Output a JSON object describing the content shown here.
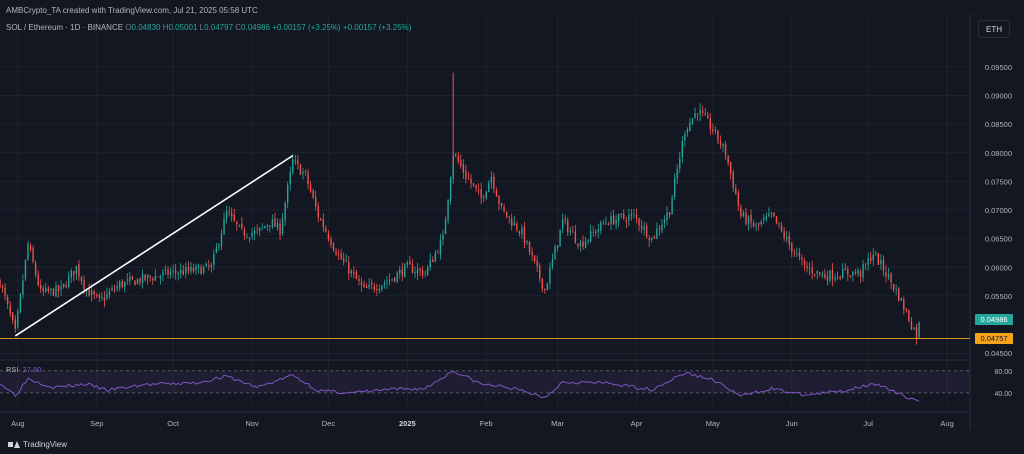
{
  "header": {
    "attribution": "AMBCrypto_TA created with TradingView.com, Jul 21, 2025 05:58 UTC",
    "symbol": "SOL / Ethereum · 1D · BINANCE",
    "o_label": "O",
    "o_value": "0.04830",
    "h_label": "H",
    "h_value": "0.05001",
    "l_label": "L",
    "l_value": "0.04797",
    "c_label": "C",
    "c_value": "0.04986",
    "change": "+0.00157 (+3.25%)"
  },
  "currency_button": "ETH",
  "last_price_tag": {
    "value": "0.04986",
    "color": "#26a69a"
  },
  "line_price_tag": {
    "value": "0.04757",
    "color": "#f7a21b"
  },
  "rsi": {
    "label": "RSI",
    "value": "27.80",
    "levels": [
      "80.00",
      "40.00"
    ],
    "color": "#7e57c2"
  },
  "footer": {
    "brand": "TradingView"
  },
  "colors": {
    "up": "#26a69a",
    "down": "#ef5350",
    "background": "#131722",
    "grid": "#1e222d",
    "trendline": "#ffffff",
    "support": "#f7a21b"
  },
  "chart_data": {
    "type": "candlestick",
    "x_ticks": [
      "Aug",
      "Sep",
      "Oct",
      "Nov",
      "Dec",
      "2025",
      "Feb",
      "Mar",
      "Apr",
      "May",
      "Jun",
      "Jul",
      "Aug"
    ],
    "y_ticks": [
      "0.09500",
      "0.09000",
      "0.08500",
      "0.08000",
      "0.07500",
      "0.07000",
      "0.06500",
      "0.06000",
      "0.05500",
      "0.04500"
    ],
    "y_range": [
      0.0445,
      0.099
    ],
    "x_range": [
      "2024-07-25",
      "2025-08-10"
    ],
    "support_level": 0.04757,
    "trendline": {
      "from": [
        "2024-07-31",
        0.048
      ],
      "to": [
        "2024-11-17",
        0.0795
      ]
    },
    "price_path": [
      [
        "2024-07-25",
        0.0575
      ],
      [
        "2024-07-31",
        0.0485
      ],
      [
        "2024-08-05",
        0.064
      ],
      [
        "2024-08-10",
        0.0555
      ],
      [
        "2024-08-18",
        0.056
      ],
      [
        "2024-08-24",
        0.06
      ],
      [
        "2024-08-28",
        0.056
      ],
      [
        "2024-09-02",
        0.054
      ],
      [
        "2024-09-10",
        0.057
      ],
      [
        "2024-09-20",
        0.058
      ],
      [
        "2024-09-30",
        0.059
      ],
      [
        "2024-10-10",
        0.0595
      ],
      [
        "2024-10-16",
        0.06
      ],
      [
        "2024-10-22",
        0.0695
      ],
      [
        "2024-10-28",
        0.066
      ],
      [
        "2024-11-03",
        0.066
      ],
      [
        "2024-11-08",
        0.068
      ],
      [
        "2024-11-12",
        0.0665
      ],
      [
        "2024-11-17",
        0.0785
      ],
      [
        "2024-11-22",
        0.076
      ],
      [
        "2024-11-27",
        0.069
      ],
      [
        "2024-12-05",
        0.062
      ],
      [
        "2024-12-15",
        0.056
      ],
      [
        "2024-12-24",
        0.0575
      ],
      [
        "2025-01-01",
        0.06
      ],
      [
        "2025-01-08",
        0.059
      ],
      [
        "2025-01-15",
        0.065
      ],
      [
        "2025-01-19",
        0.08
      ],
      [
        "2025-01-24",
        0.076
      ],
      [
        "2025-01-30",
        0.072
      ],
      [
        "2025-02-03",
        0.076
      ],
      [
        "2025-02-07",
        0.07
      ],
      [
        "2025-02-15",
        0.066
      ],
      [
        "2025-02-24",
        0.056
      ],
      [
        "2025-03-03",
        0.068
      ],
      [
        "2025-03-10",
        0.064
      ],
      [
        "2025-03-20",
        0.068
      ],
      [
        "2025-03-31",
        0.069
      ],
      [
        "2025-04-07",
        0.065
      ],
      [
        "2025-04-14",
        0.07
      ],
      [
        "2025-04-20",
        0.084
      ],
      [
        "2025-04-25",
        0.0875
      ],
      [
        "2025-05-01",
        0.084
      ],
      [
        "2025-05-06",
        0.08
      ],
      [
        "2025-05-12",
        0.069
      ],
      [
        "2025-05-18",
        0.067
      ],
      [
        "2025-05-24",
        0.069
      ],
      [
        "2025-05-31",
        0.064
      ],
      [
        "2025-06-06",
        0.06
      ],
      [
        "2025-06-14",
        0.0585
      ],
      [
        "2025-06-22",
        0.059
      ],
      [
        "2025-06-28",
        0.059
      ],
      [
        "2025-07-03",
        0.0625
      ],
      [
        "2025-07-08",
        0.059
      ],
      [
        "2025-07-13",
        0.055
      ],
      [
        "2025-07-17",
        0.051
      ],
      [
        "2025-07-20",
        0.0482
      ],
      [
        "2025-07-21",
        0.0499
      ]
    ],
    "rsi_path": [
      [
        "2024-07-25",
        58
      ],
      [
        "2024-07-31",
        36
      ],
      [
        "2024-08-05",
        66
      ],
      [
        "2024-08-15",
        50
      ],
      [
        "2024-08-28",
        56
      ],
      [
        "2024-09-05",
        45
      ],
      [
        "2024-09-20",
        55
      ],
      [
        "2024-10-10",
        58
      ],
      [
        "2024-10-22",
        70
      ],
      [
        "2024-11-03",
        50
      ],
      [
        "2024-11-17",
        72
      ],
      [
        "2024-11-27",
        44
      ],
      [
        "2024-12-10",
        40
      ],
      [
        "2024-12-24",
        46
      ],
      [
        "2025-01-08",
        48
      ],
      [
        "2025-01-19",
        80
      ],
      [
        "2025-01-30",
        56
      ],
      [
        "2025-02-10",
        50
      ],
      [
        "2025-02-24",
        32
      ],
      [
        "2025-03-03",
        60
      ],
      [
        "2025-03-20",
        58
      ],
      [
        "2025-04-07",
        46
      ],
      [
        "2025-04-20",
        76
      ],
      [
        "2025-05-01",
        64
      ],
      [
        "2025-05-12",
        34
      ],
      [
        "2025-05-24",
        48
      ],
      [
        "2025-06-06",
        36
      ],
      [
        "2025-06-22",
        44
      ],
      [
        "2025-07-03",
        58
      ],
      [
        "2025-07-13",
        38
      ],
      [
        "2025-07-20",
        27
      ],
      [
        "2025-07-21",
        28
      ]
    ]
  }
}
